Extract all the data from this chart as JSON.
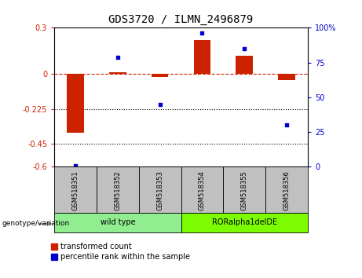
{
  "title": "GDS3720 / ILMN_2496879",
  "samples": [
    "GSM518351",
    "GSM518352",
    "GSM518353",
    "GSM518354",
    "GSM518355",
    "GSM518356"
  ],
  "red_values": [
    -0.38,
    0.01,
    -0.02,
    0.22,
    0.12,
    -0.04
  ],
  "blue_values_pct": [
    1,
    79,
    45,
    96,
    85,
    30
  ],
  "ylim_left": [
    -0.6,
    0.3
  ],
  "ylim_right": [
    0,
    100
  ],
  "yticks_left": [
    0.3,
    0.0,
    -0.225,
    -0.45,
    -0.6
  ],
  "yticks_left_labels": [
    "0.3",
    "0",
    "-0.225",
    "-0.45",
    "-0.6"
  ],
  "yticks_right": [
    100,
    75,
    50,
    25,
    0
  ],
  "yticks_right_labels": [
    "100%",
    "75",
    "50",
    "25",
    "0"
  ],
  "bar_width": 0.4,
  "red_color": "#CC2200",
  "blue_color": "#0000CC",
  "dashed_line_color": "#CC2200",
  "dot_line_color": "#000000",
  "background_plot": "#FFFFFF",
  "background_fig": "#FFFFFF",
  "label_red": "transformed count",
  "label_blue": "percentile rank within the sample",
  "genotype_label": "genotype/variation",
  "group_bg_color": "#C0C0C0",
  "wild_type_color": "#90EE90",
  "ror_color": "#7CFC00",
  "tick_label_fontsize": 7,
  "title_fontsize": 10,
  "legend_fontsize": 7
}
